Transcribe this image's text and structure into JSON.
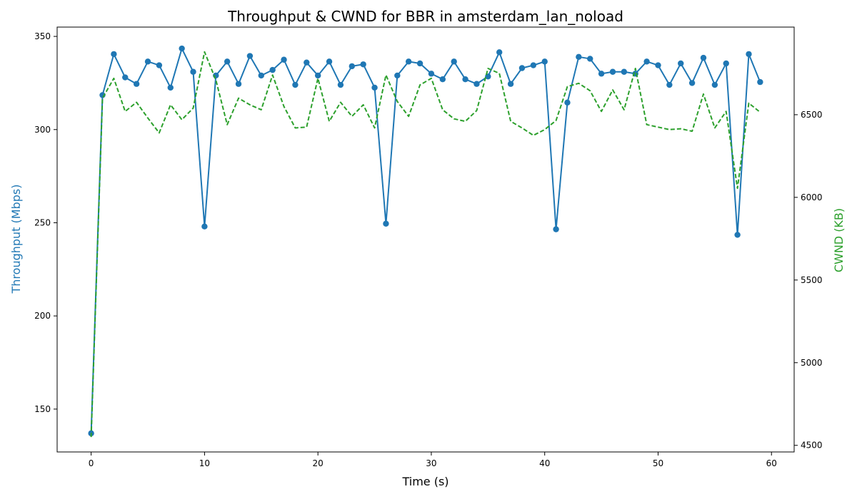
{
  "chart_data": {
    "type": "line",
    "title": "Throughput & CWND for BBR in amsterdam_lan_noload",
    "xlabel": "Time (s)",
    "ylabel_left": "Throughput (Mbps)",
    "ylabel_right": "CWND (KB)",
    "xlim": [
      -3,
      62
    ],
    "ylim_left": [
      127,
      355
    ],
    "ylim_right": [
      4460,
      7030
    ],
    "xticks": [
      0,
      10,
      20,
      30,
      40,
      50,
      60
    ],
    "yticks_left": [
      150,
      200,
      250,
      300,
      350
    ],
    "yticks_right": [
      4500,
      5000,
      5500,
      6000,
      6500
    ],
    "grid": false,
    "colors": {
      "throughput": "#1f77b4",
      "cwnd": "#2ca02c"
    },
    "x": [
      0,
      1,
      2,
      3,
      4,
      5,
      6,
      7,
      8,
      9,
      10,
      11,
      12,
      13,
      14,
      15,
      16,
      17,
      18,
      19,
      20,
      21,
      22,
      23,
      24,
      25,
      26,
      27,
      28,
      29,
      30,
      31,
      32,
      33,
      34,
      35,
      36,
      37,
      38,
      39,
      40,
      41,
      42,
      43,
      44,
      45,
      46,
      47,
      48,
      49,
      50,
      51,
      52,
      53,
      54,
      55,
      56,
      57,
      58,
      59
    ],
    "series": [
      {
        "axis": "left",
        "style": "solid-markers",
        "values": [
          137,
          318.5,
          340.5,
          328,
          324.5,
          336.5,
          334.5,
          322.5,
          343.5,
          331,
          248,
          329,
          336.5,
          324.5,
          339.5,
          329,
          332,
          337.5,
          324,
          336,
          329,
          336.5,
          324,
          334,
          335,
          322.5,
          249.5,
          329,
          336.5,
          335.5,
          330,
          327,
          336.5,
          327,
          324.5,
          328.5,
          341.5,
          324.5,
          333,
          334.5,
          336.5,
          246.5,
          314.5,
          339,
          338,
          330,
          331,
          331,
          330,
          336.5,
          334.5,
          324,
          335.5,
          325,
          338.5,
          324,
          335.5,
          243.5,
          340.5,
          325.5
        ]
      },
      {
        "axis": "right",
        "style": "dashed",
        "values": [
          4550,
          6600,
          6720,
          6520,
          6575,
          6480,
          6390,
          6560,
          6470,
          6540,
          6880,
          6710,
          6440,
          6600,
          6560,
          6530,
          6740,
          6550,
          6420,
          6425,
          6720,
          6460,
          6575,
          6490,
          6560,
          6420,
          6740,
          6580,
          6490,
          6680,
          6720,
          6530,
          6475,
          6460,
          6525,
          6780,
          6750,
          6460,
          6420,
          6375,
          6410,
          6465,
          6670,
          6690,
          6645,
          6520,
          6650,
          6530,
          6780,
          6440,
          6425,
          6410,
          6415,
          6400,
          6625,
          6420,
          6520,
          6055,
          6570,
          6515
        ]
      }
    ]
  }
}
